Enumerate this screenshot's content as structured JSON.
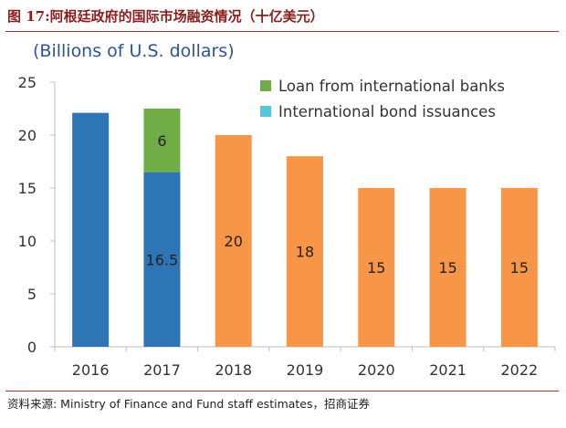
{
  "figure": {
    "title": "图 17:阿根廷政府的国际市场融资情况（十亿美元）",
    "source": "资料来源: Ministry of Finance and Fund staff estimates，招商证券"
  },
  "chart_data": {
    "type": "bar",
    "stacked": true,
    "unit_label": "(Billions of U.S. dollars)",
    "categories": [
      "2016",
      "2017",
      "2018",
      "2019",
      "2020",
      "2021",
      "2022"
    ],
    "series": [
      {
        "name": "International bond issuances",
        "color": "#2e75b6",
        "values": [
          22.1,
          16.5,
          null,
          null,
          null,
          null,
          null
        ]
      },
      {
        "name": "Loan from international banks",
        "color": "#70ad47",
        "values": [
          null,
          6,
          null,
          null,
          null,
          null,
          null
        ]
      },
      {
        "values": [
          null,
          null,
          20,
          18,
          15,
          15,
          15
        ],
        "color": "#f79646"
      }
    ],
    "data_labels": [
      {
        "category": "2017",
        "series": 0,
        "text": "16.5"
      },
      {
        "category": "2017",
        "series": 1,
        "text": "6"
      },
      {
        "category": "2018",
        "series": 2,
        "text": "20"
      },
      {
        "category": "2019",
        "series": 2,
        "text": "18"
      },
      {
        "category": "2020",
        "series": 2,
        "text": "15"
      },
      {
        "category": "2021",
        "series": 2,
        "text": "15"
      },
      {
        "category": "2022",
        "series": 2,
        "text": "15"
      }
    ],
    "legend": [
      {
        "label": "Loan from international banks",
        "color": "#70ad47"
      },
      {
        "label": "International bond issuances",
        "color": "#5bc4de"
      }
    ],
    "legend_position": "top-right",
    "ylim": [
      0,
      25
    ],
    "yticks": [
      0,
      5,
      10,
      15,
      20,
      25
    ],
    "grid": false
  }
}
